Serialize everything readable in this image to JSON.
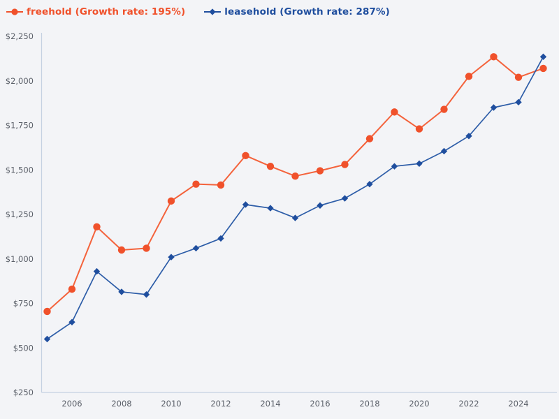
{
  "colors": {
    "background": "#f3f4f7",
    "axis_line": "#c5d1e2",
    "tick_label": "#5b6069",
    "freehold_marker": "#f0512b",
    "freehold_line": "#f4633c",
    "leasehold_marker": "#1f4e9e",
    "leasehold_line": "#2d5da8"
  },
  "legend": {
    "items": [
      {
        "label": "freehold (Growth rate: 195%)",
        "series": "freehold",
        "marker": "circle"
      },
      {
        "label": "leasehold (Growth rate: 287%)",
        "series": "leasehold",
        "marker": "diamond"
      }
    ]
  },
  "chart_data": {
    "type": "line",
    "title": "",
    "xlabel": "",
    "ylabel": "",
    "grid": false,
    "legend_position": "top-left",
    "x": [
      2005,
      2006,
      2007,
      2008,
      2009,
      2010,
      2011,
      2012,
      2013,
      2014,
      2015,
      2016,
      2017,
      2018,
      2019,
      2020,
      2021,
      2022,
      2023,
      2024,
      2025
    ],
    "series": [
      {
        "name": "freehold",
        "growth_rate": "195%",
        "marker": "circle",
        "color": "#f0512b",
        "line_color": "#f4633c",
        "values": [
          705,
          830,
          1180,
          1050,
          1060,
          1325,
          1420,
          1415,
          1580,
          1520,
          1465,
          1495,
          1530,
          1675,
          1825,
          1730,
          1840,
          2025,
          2135,
          2020,
          2070
        ]
      },
      {
        "name": "leasehold",
        "growth_rate": "287%",
        "marker": "diamond",
        "color": "#1f4e9e",
        "line_color": "#2d5da8",
        "values": [
          550,
          645,
          930,
          815,
          800,
          1010,
          1060,
          1115,
          1305,
          1285,
          1230,
          1300,
          1340,
          1420,
          1520,
          1535,
          1605,
          1690,
          1850,
          1880,
          2135
        ]
      }
    ],
    "ylim": [
      250,
      2250
    ],
    "y_ticks": [
      250,
      500,
      750,
      1000,
      1250,
      1500,
      1750,
      2000,
      2250
    ],
    "y_tick_labels": [
      "$250",
      "$500",
      "$750",
      "$1,000",
      "$1,250",
      "$1,500",
      "$1,750",
      "$2,000",
      "$2,250"
    ],
    "x_tick_labels": [
      "2006",
      "2008",
      "2010",
      "2012",
      "2014",
      "2016",
      "2018",
      "2020",
      "2022",
      "2024"
    ]
  }
}
